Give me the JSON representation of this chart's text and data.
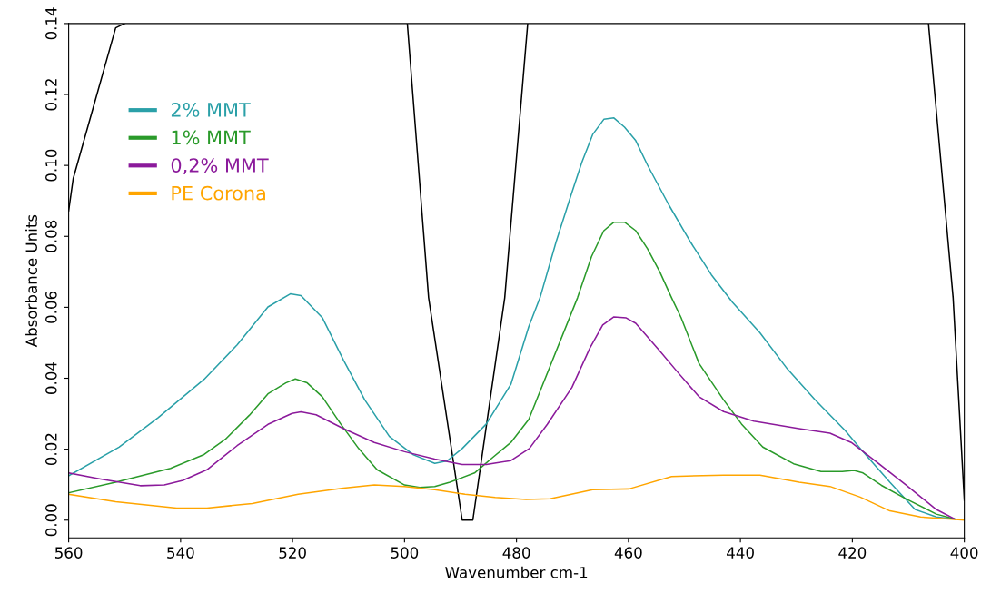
{
  "chart_data": {
    "type": "line",
    "xlabel": "Wavenumber cm-1",
    "ylabel": "Absorbance Units",
    "xlim": [
      560,
      400
    ],
    "xticks": [
      560,
      540,
      520,
      500,
      480,
      460,
      440,
      420,
      400
    ],
    "ylim": [
      -0.005,
      0.14
    ],
    "yticks": [
      {
        "value": 0,
        "label": "0.00"
      },
      {
        "value": 0.02,
        "label": "0.02"
      },
      {
        "value": 0.04,
        "label": "0.04"
      },
      {
        "value": 0.06,
        "label": "0.06"
      },
      {
        "value": 0.08,
        "label": "0.08"
      },
      {
        "value": 0.1,
        "label": "0.10"
      },
      {
        "value": 0.12,
        "label": "0.12"
      },
      {
        "value": 0.14,
        "label": "0.14"
      }
    ],
    "grid": false,
    "legend": "top left",
    "marker": "none",
    "line_style": "solid",
    "series": [
      {
        "color": "#000000",
        "x": [
          560,
          559.2,
          555.9,
          551.6,
          550.0,
          525,
          499.5,
          495.7,
          489.7,
          487.8,
          482.1,
          478.0,
          440,
          406.4,
          402.0,
          400.0
        ],
        "values": [
          0.0872,
          0.0962,
          0.1147,
          0.1388,
          0.14,
          null,
          0.14,
          0.0627,
          0,
          0,
          0.0627,
          0.14,
          null,
          0.14,
          0.0627,
          0.0056
        ]
      },
      {
        "name": "2% MMT",
        "color": "#2aa0a8",
        "x": [
          560,
          551.0,
          544.0,
          535.8,
          529.9,
          524.4,
          520.4,
          518.5,
          514.7,
          510.9,
          507.1,
          502.7,
          498.4,
          494.6,
          492.4,
          489.7,
          485.4,
          481.0,
          477.8,
          475.8,
          472.9,
          470.1,
          468.3,
          466.4,
          464.4,
          462.6,
          460.7,
          458.7,
          456.6,
          452.8,
          449.0,
          445.2,
          441.4,
          436.5,
          431.6,
          426.7,
          421.3,
          418.1,
          413.3,
          408.8,
          405.0,
          401.7
        ],
        "values": [
          0.0125,
          0.0206,
          0.0289,
          0.0397,
          0.0494,
          0.0601,
          0.0638,
          0.0633,
          0.0571,
          0.0451,
          0.0339,
          0.0236,
          0.0184,
          0.016,
          0.0167,
          0.0202,
          0.0271,
          0.0383,
          0.0546,
          0.0627,
          0.0786,
          0.0924,
          0.101,
          0.1087,
          0.113,
          0.1134,
          0.1108,
          0.107,
          0.1001,
          0.0889,
          0.0786,
          0.0692,
          0.0614,
          0.0528,
          0.0426,
          0.034,
          0.0253,
          0.0193,
          0.0107,
          0.003,
          0.0009,
          0.0003
        ]
      },
      {
        "name": "1% MMT",
        "color": "#2a9a2a",
        "x": [
          560,
          551.6,
          541.8,
          535.8,
          532.0,
          527.7,
          524.4,
          521.2,
          519.5,
          517.4,
          514.7,
          511.4,
          508.2,
          504.9,
          500.0,
          497.3,
          494.6,
          491.9,
          487.5,
          484.3,
          481.0,
          477.8,
          469.1,
          466.6,
          464.4,
          462.6,
          460.7,
          458.7,
          456.6,
          454.4,
          452.3,
          450.6,
          447.4,
          443.0,
          439.8,
          436.0,
          430.5,
          425.6,
          421.8,
          419.7,
          418.1,
          414.8,
          410.4,
          405.0,
          401.7
        ],
        "values": [
          0.0077,
          0.0107,
          0.0146,
          0.0185,
          0.0228,
          0.0296,
          0.0356,
          0.0387,
          0.0398,
          0.0387,
          0.0348,
          0.0271,
          0.0202,
          0.0142,
          0.0099,
          0.0092,
          0.0095,
          0.0107,
          0.0133,
          0.0176,
          0.0219,
          0.0284,
          0.0627,
          0.0743,
          0.0816,
          0.084,
          0.084,
          0.0816,
          0.0765,
          0.07,
          0.0627,
          0.0571,
          0.0442,
          0.0339,
          0.0271,
          0.0206,
          0.0159,
          0.0137,
          0.0137,
          0.014,
          0.0133,
          0.0098,
          0.006,
          0.0017,
          0.0003
        ]
      },
      {
        "name": "0,2% MMT",
        "color": "#8b1a9b",
        "x": [
          560,
          554.3,
          547.2,
          542.9,
          539.6,
          535.3,
          529.9,
          524.4,
          520.1,
          518.5,
          515.8,
          510.9,
          505.4,
          500.0,
          494.6,
          489.7,
          485.4,
          481.0,
          477.7,
          474.5,
          470.1,
          466.9,
          464.6,
          462.6,
          460.4,
          458.7,
          454.4,
          451.2,
          447.4,
          443.0,
          437.6,
          429.5,
          424.0,
          420.2,
          415.9,
          410.4,
          405.0,
          401.7
        ],
        "values": [
          0.0133,
          0.0116,
          0.0097,
          0.0099,
          0.0112,
          0.0142,
          0.021,
          0.027,
          0.0301,
          0.0305,
          0.0297,
          0.0258,
          0.0219,
          0.0193,
          0.0172,
          0.0157,
          0.0157,
          0.0168,
          0.0202,
          0.027,
          0.0374,
          0.0485,
          0.055,
          0.0573,
          0.057,
          0.0555,
          0.0477,
          0.0417,
          0.0348,
          0.0306,
          0.0279,
          0.0258,
          0.0245,
          0.0219,
          0.0167,
          0.0099,
          0.003,
          0.0003
        ]
      },
      {
        "name": "PE Corona",
        "color": "#ffa500",
        "x": [
          560,
          551.6,
          540.7,
          535.3,
          527.2,
          519.0,
          510.9,
          505.4,
          500.0,
          494.6,
          489.2,
          483.8,
          478.3,
          474.0,
          466.4,
          459.9,
          452.3,
          443.0,
          436.5,
          429.5,
          424.0,
          418.6,
          413.3,
          407.8,
          400.0
        ],
        "values": [
          0.0073,
          0.0052,
          0.0034,
          0.0034,
          0.0047,
          0.0073,
          0.009,
          0.0099,
          0.0095,
          0.0086,
          0.0073,
          0.0064,
          0.0058,
          0.006,
          0.0086,
          0.0088,
          0.0123,
          0.0127,
          0.0127,
          0.0107,
          0.0095,
          0.0065,
          0.0026,
          0.0009,
          0.0
        ]
      }
    ]
  }
}
